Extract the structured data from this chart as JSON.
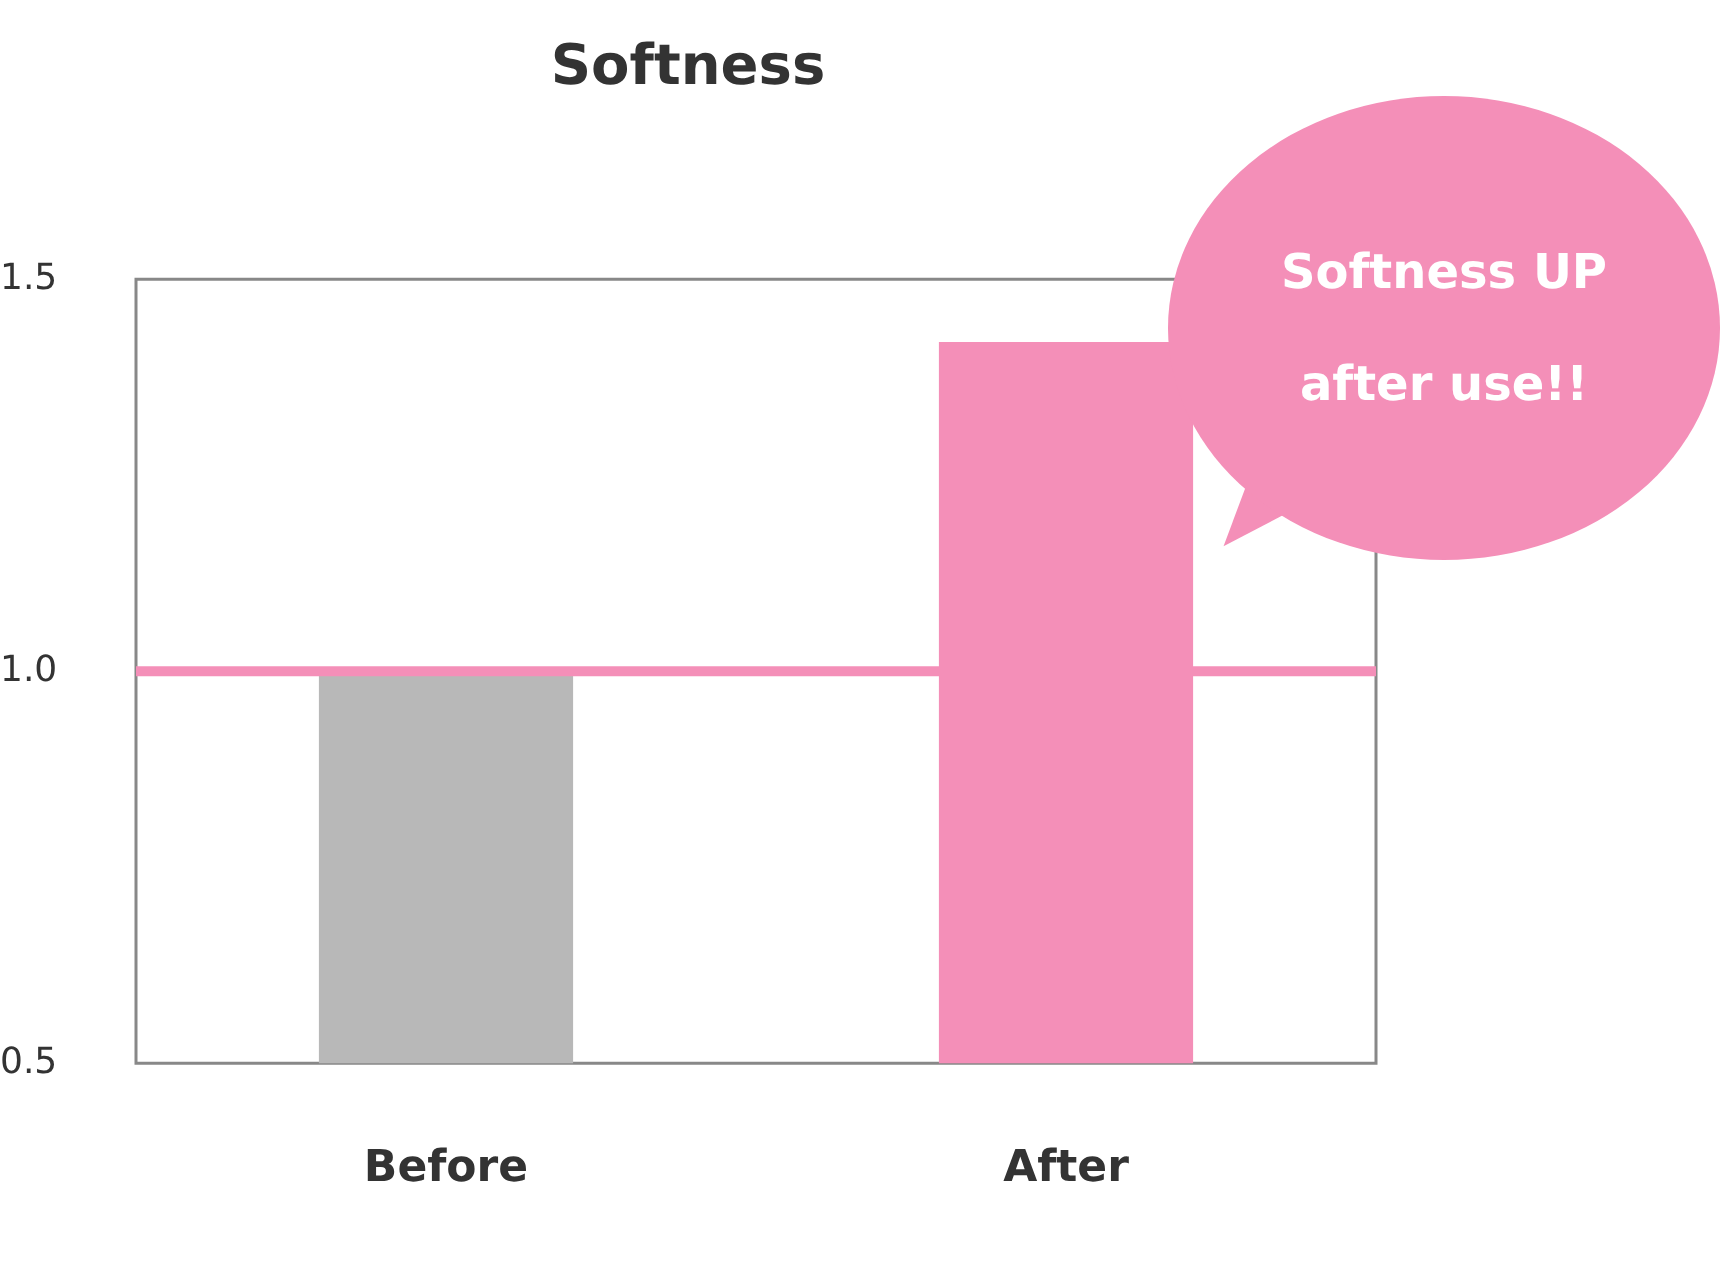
{
  "chart_data": {
    "type": "bar",
    "title": "Softness",
    "categories": [
      "Before",
      "After"
    ],
    "values": [
      1.0,
      1.42
    ],
    "colors": [
      "#b8b8b8",
      "#f48fb8"
    ],
    "ylim": [
      0.5,
      1.5
    ],
    "yticks": [
      {
        "value": 0.5,
        "label": "0.5"
      },
      {
        "value": 1,
        "label": "1.0"
      },
      {
        "value": 1.5,
        "label": "1.5"
      }
    ],
    "ref_lines": [
      {
        "axis": "y",
        "value": 1,
        "color": "#f48fb8"
      }
    ],
    "annotations": [
      "Softness UP after use!!"
    ],
    "grid": false,
    "legend": false
  }
}
